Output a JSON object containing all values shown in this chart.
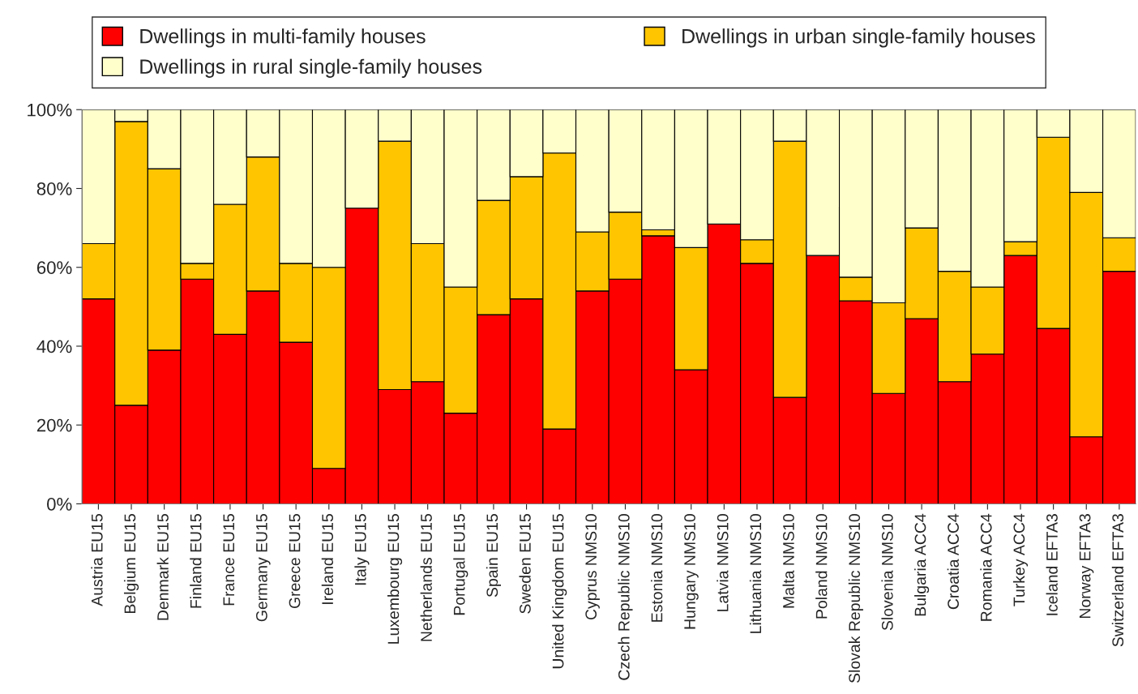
{
  "chart_data": {
    "type": "bar",
    "stacked": true,
    "legend": "top",
    "grid": false,
    "categories": [
      "Austria EU15",
      "Belgium EU15",
      "Denmark EU15",
      "Finland EU15",
      "France EU15",
      "Germany EU15",
      "Greece EU15",
      "Ireland EU15",
      "Italy EU15",
      "Luxembourg EU15",
      "Netherlands EU15",
      "Portugal EU15",
      "Spain EU15",
      "Sweden EU15",
      "United Kingdom EU15",
      "Cyprus NMS10",
      "Czech Republic NMS10",
      "Estonia NMS10",
      "Hungary NMS10",
      "Latvia NMS10",
      "Lithuania NMS10",
      "Malta NMS10",
      "Poland NMS10",
      "Slovak Republic NMS10",
      "Slovenia NMS10",
      "Bulgaria ACC4",
      "Croatia ACC4",
      "Romania ACC4",
      "Turkey ACC4",
      "Iceland EFTA3",
      "Norway EFTA3",
      "Switzerland EFTA3"
    ],
    "series": [
      {
        "name": "Dwellings in multi-family houses",
        "color": "#ff0000",
        "values": [
          52,
          25,
          39,
          57,
          43,
          54,
          41,
          9,
          75,
          29,
          31,
          23,
          48,
          52,
          19,
          54,
          57,
          68,
          34,
          71,
          61,
          27,
          63,
          51.5,
          28,
          47,
          31,
          38,
          63,
          44.5,
          17,
          59
        ]
      },
      {
        "name": "Dwellings in urban single-family houses",
        "color": "#ffc600",
        "values": [
          14,
          72,
          46,
          4,
          33,
          34,
          20,
          51,
          0,
          63,
          35,
          32,
          29,
          31,
          70,
          15,
          17,
          1.5,
          31,
          0,
          6,
          65,
          0,
          6,
          23,
          23,
          28,
          17,
          3.5,
          48.5,
          62,
          8.5
        ]
      },
      {
        "name": "Dwellings in rural single-family houses",
        "color": "#ffffcc",
        "values": [
          34,
          3,
          15,
          39,
          24,
          12,
          39,
          40,
          25,
          8,
          34,
          45,
          23,
          17,
          11,
          31,
          26,
          30.5,
          35,
          29,
          33,
          8,
          37,
          42.5,
          49,
          30,
          41,
          45,
          33.5,
          7,
          21,
          32.5
        ]
      }
    ],
    "ylim": [
      0,
      100
    ],
    "yticks": [
      {
        "value": 0,
        "label": "0%"
      },
      {
        "value": 20,
        "label": "20%"
      },
      {
        "value": 40,
        "label": "40%"
      },
      {
        "value": 60,
        "label": "60%"
      },
      {
        "value": 80,
        "label": "80%"
      },
      {
        "value": 100,
        "label": "100%"
      }
    ]
  }
}
